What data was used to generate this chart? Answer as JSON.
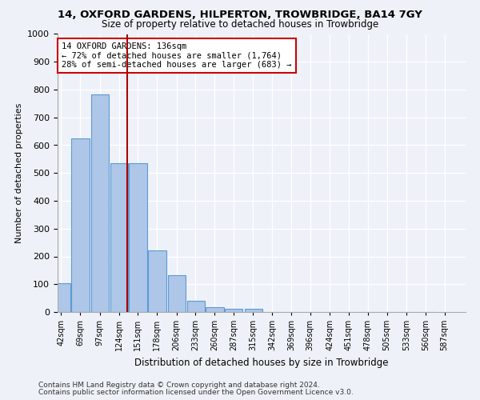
{
  "title1": "14, OXFORD GARDENS, HILPERTON, TROWBRIDGE, BA14 7GY",
  "title2": "Size of property relative to detached houses in Trowbridge",
  "xlabel": "Distribution of detached houses by size in Trowbridge",
  "ylabel": "Number of detached properties",
  "bar_color": "#aec6e8",
  "bar_edge_color": "#5b9bd5",
  "background_color": "#eef2f8",
  "fig_background_color": "#eef2f8",
  "grid_color": "#ffffff",
  "vline_color": "#aa0000",
  "annotation_text": "14 OXFORD GARDENS: 136sqm\n← 72% of detached houses are smaller (1,764)\n28% of semi-detached houses are larger (683) →",
  "annotation_box_color": "#ffffff",
  "annotation_box_edge": "#cc0000",
  "footnote1": "Contains HM Land Registry data © Crown copyright and database right 2024.",
  "footnote2": "Contains public sector information licensed under the Open Government Licence v3.0.",
  "bins": [
    42,
    69,
    97,
    124,
    151,
    178,
    206,
    233,
    260,
    287,
    315,
    342,
    369,
    396,
    424,
    451,
    478,
    505,
    533,
    560,
    587
  ],
  "counts": [
    103,
    624,
    783,
    535,
    535,
    221,
    131,
    41,
    16,
    11,
    11,
    0,
    0,
    0,
    0,
    0,
    0,
    0,
    0,
    0
  ],
  "vline_value": 136,
  "ylim": [
    0,
    1000
  ],
  "yticks": [
    0,
    100,
    200,
    300,
    400,
    500,
    600,
    700,
    800,
    900,
    1000
  ],
  "title1_fontsize": 9.5,
  "title2_fontsize": 8.5,
  "ylabel_fontsize": 8,
  "xlabel_fontsize": 8.5,
  "ytick_fontsize": 8,
  "xtick_fontsize": 7,
  "annotation_fontsize": 7.5,
  "footnote_fontsize": 6.5
}
